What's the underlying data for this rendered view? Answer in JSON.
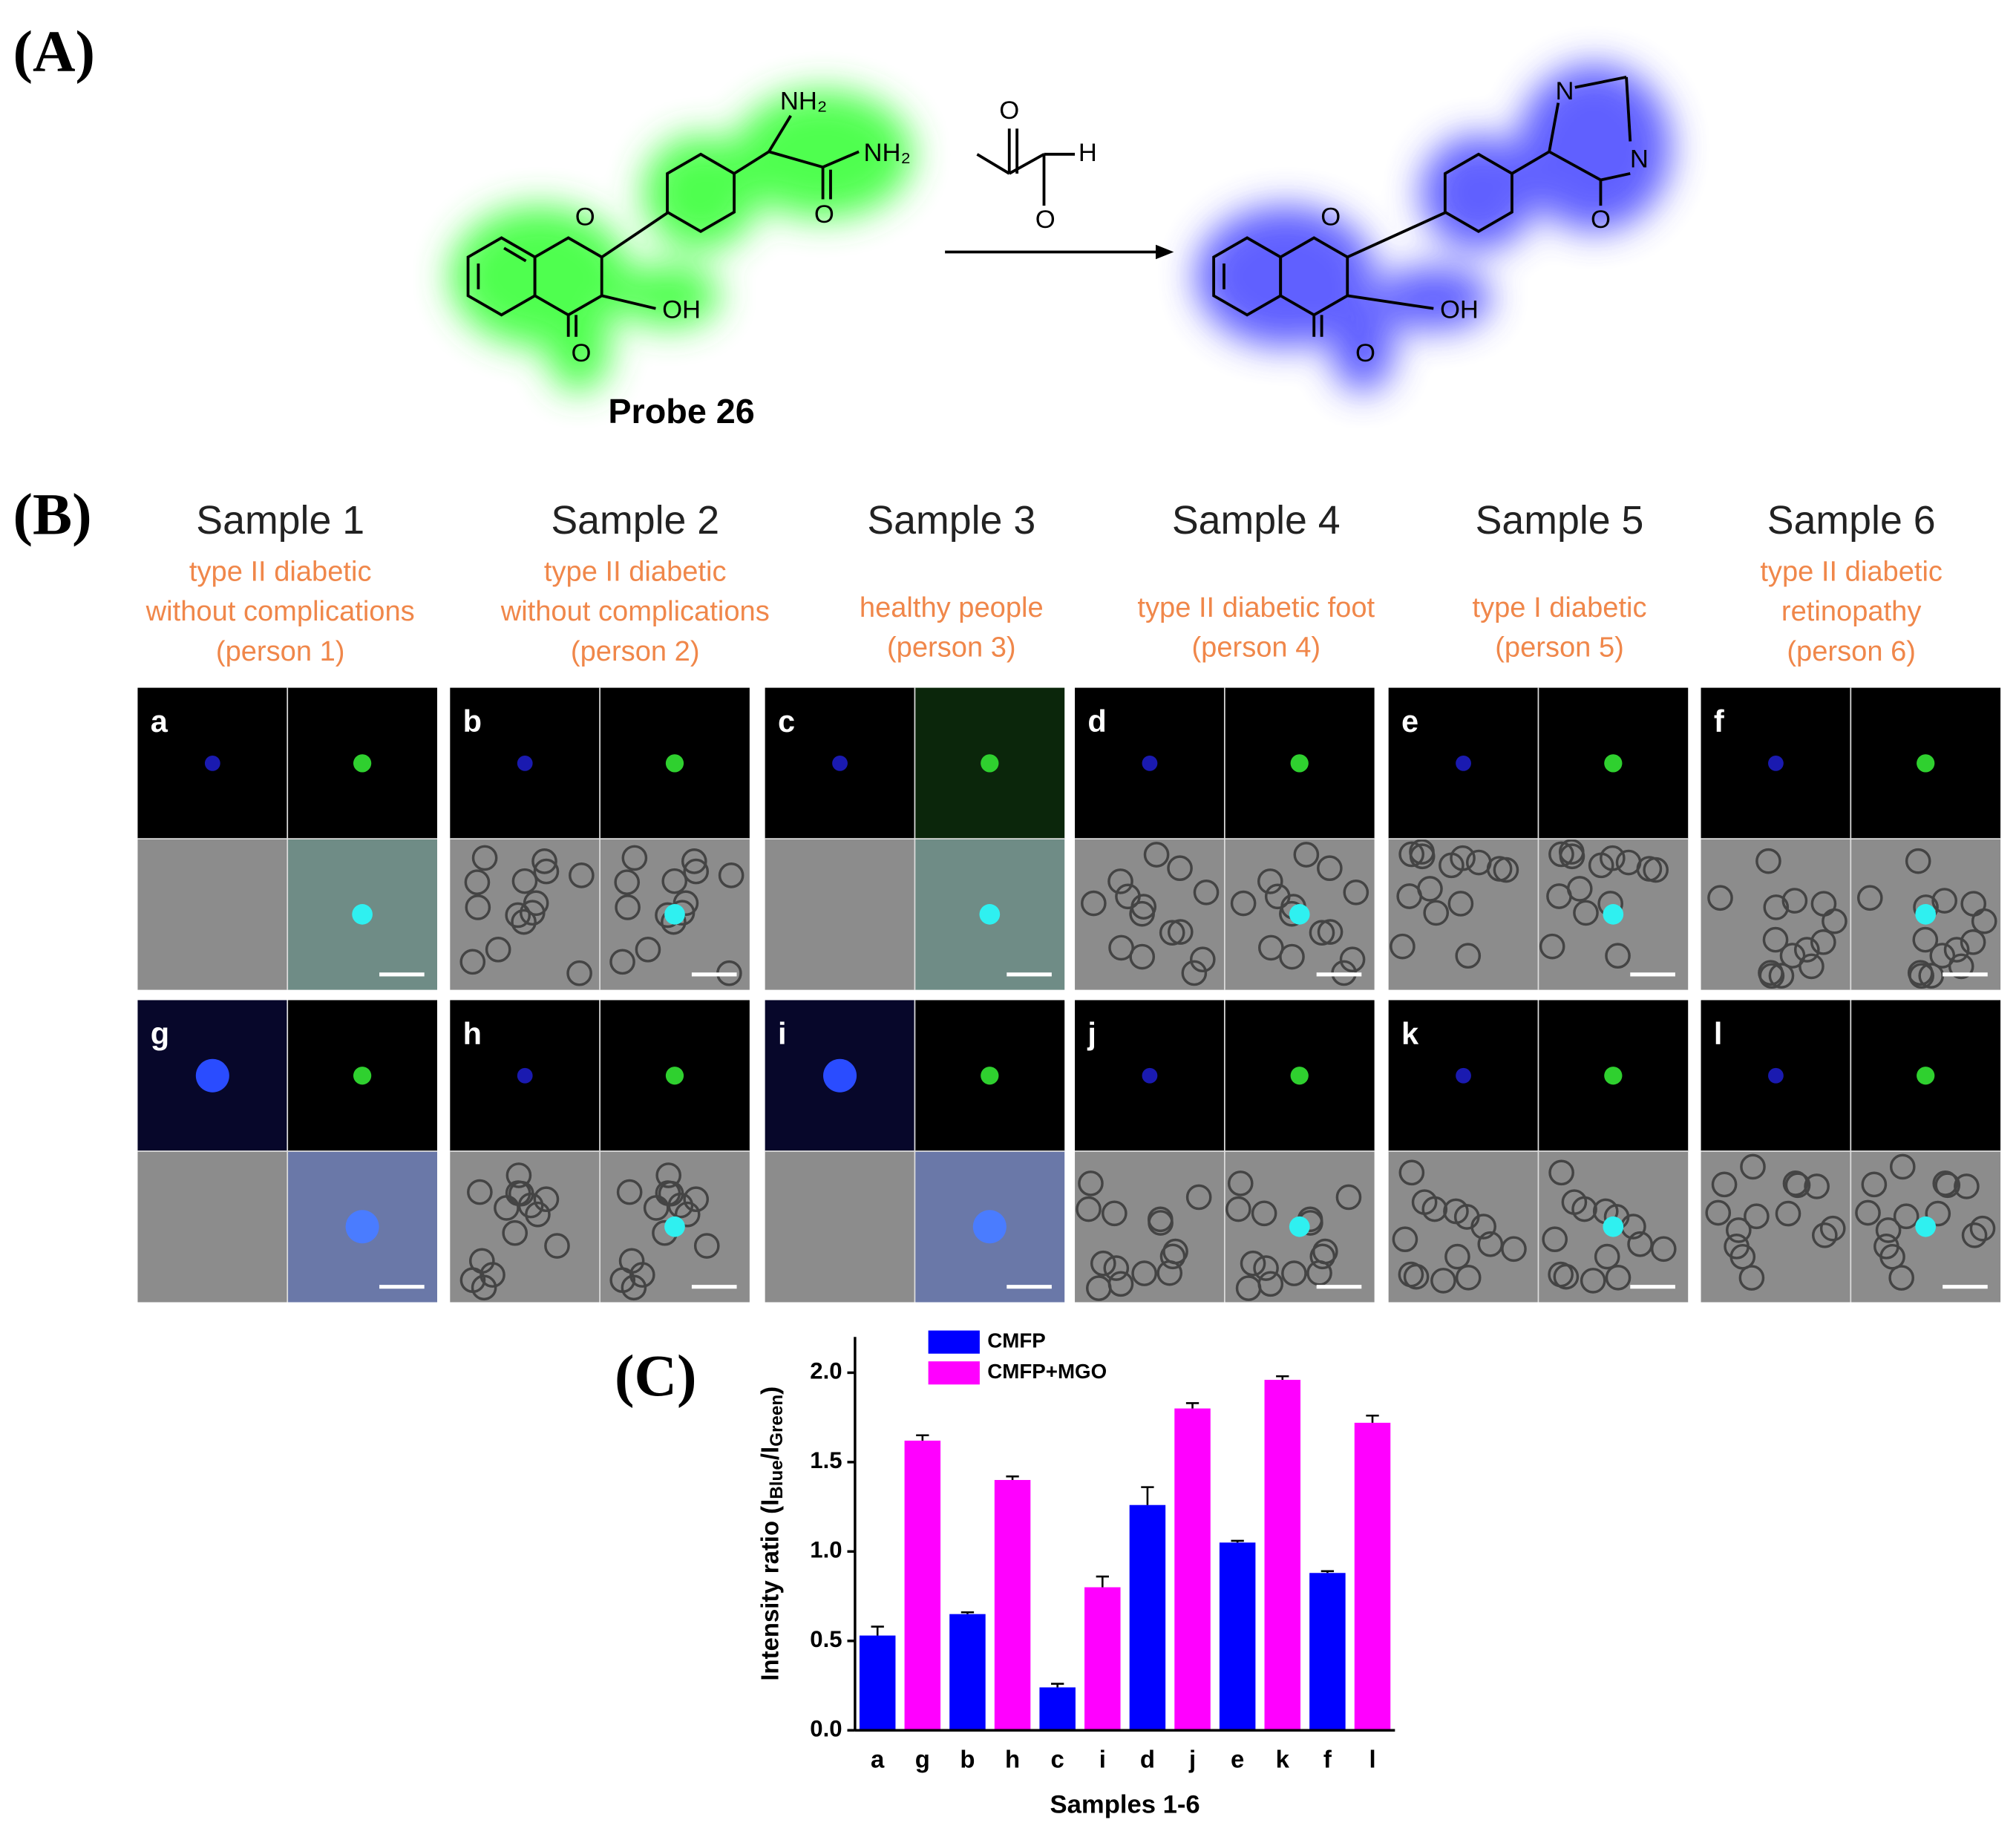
{
  "panel_labels": [
    "(A)",
    "(B)",
    "(C)"
  ],
  "scheme": {
    "probe_atoms": [
      "O",
      "OH",
      "O",
      "NH₂",
      "O",
      "NH₂"
    ],
    "probe_name": "Probe 26",
    "reagent_atoms": [
      "O",
      "H",
      "O"
    ],
    "product_atoms": [
      "O",
      "OH",
      "O",
      "N",
      "N",
      "O"
    ]
  },
  "samples": [
    {
      "title": "Sample 1",
      "description": [
        "type II diabetic",
        "without complications",
        "(person 1)"
      ],
      "panels": [
        "a",
        "g"
      ]
    },
    {
      "title": "Sample 2",
      "description": [
        "type II diabetic",
        "without complications",
        "(person 2)"
      ],
      "panels": [
        "b",
        "h"
      ]
    },
    {
      "title": "Sample 3",
      "description": [
        "healthy people",
        "(person 3)"
      ],
      "panels": [
        "c",
        "i"
      ]
    },
    {
      "title": "Sample 4",
      "description": [
        "type II diabetic foot",
        "(person 4)"
      ],
      "panels": [
        "d",
        "j"
      ]
    },
    {
      "title": "Sample 5",
      "description": [
        "type I diabetic",
        "(person 5)"
      ],
      "panels": [
        "e",
        "k"
      ]
    },
    {
      "title": "Sample 6",
      "description": [
        "type II diabetic",
        "retinopathy",
        "(person 6)"
      ],
      "panels": [
        "f",
        "l"
      ]
    }
  ],
  "chart_data": {
    "type": "bar",
    "categories": [
      "a",
      "g",
      "b",
      "h",
      "c",
      "i",
      "d",
      "j",
      "e",
      "k",
      "f",
      "l"
    ],
    "series": [
      {
        "name": "CMFP",
        "color": "#0000ff",
        "values": [
          0.53,
          null,
          0.65,
          null,
          0.24,
          null,
          1.26,
          null,
          1.05,
          null,
          0.88,
          null
        ],
        "errors": [
          0.05,
          null,
          0.01,
          null,
          0.02,
          null,
          0.1,
          null,
          0.01,
          null,
          0.01,
          null
        ]
      },
      {
        "name": "CMFP+MGO",
        "color": "#ff00ff",
        "values": [
          null,
          1.62,
          null,
          1.4,
          null,
          0.8,
          null,
          1.8,
          null,
          1.96,
          null,
          1.72
        ],
        "errors": [
          null,
          0.03,
          null,
          0.02,
          null,
          0.06,
          null,
          0.03,
          null,
          0.02,
          null,
          0.04
        ]
      }
    ],
    "ylim": [
      0,
      2.2
    ],
    "yticks": [
      {
        "value": 0,
        "label": "0.0"
      },
      0.5,
      {
        "value": 1,
        "label": "1.0"
      },
      1.5,
      {
        "value": 2,
        "label": "2.0"
      }
    ],
    "ylabel": [
      "Intensity ratio (I",
      "Blue",
      "/I",
      "Green",
      ")"
    ],
    "xlabel": "Samples 1-6"
  }
}
